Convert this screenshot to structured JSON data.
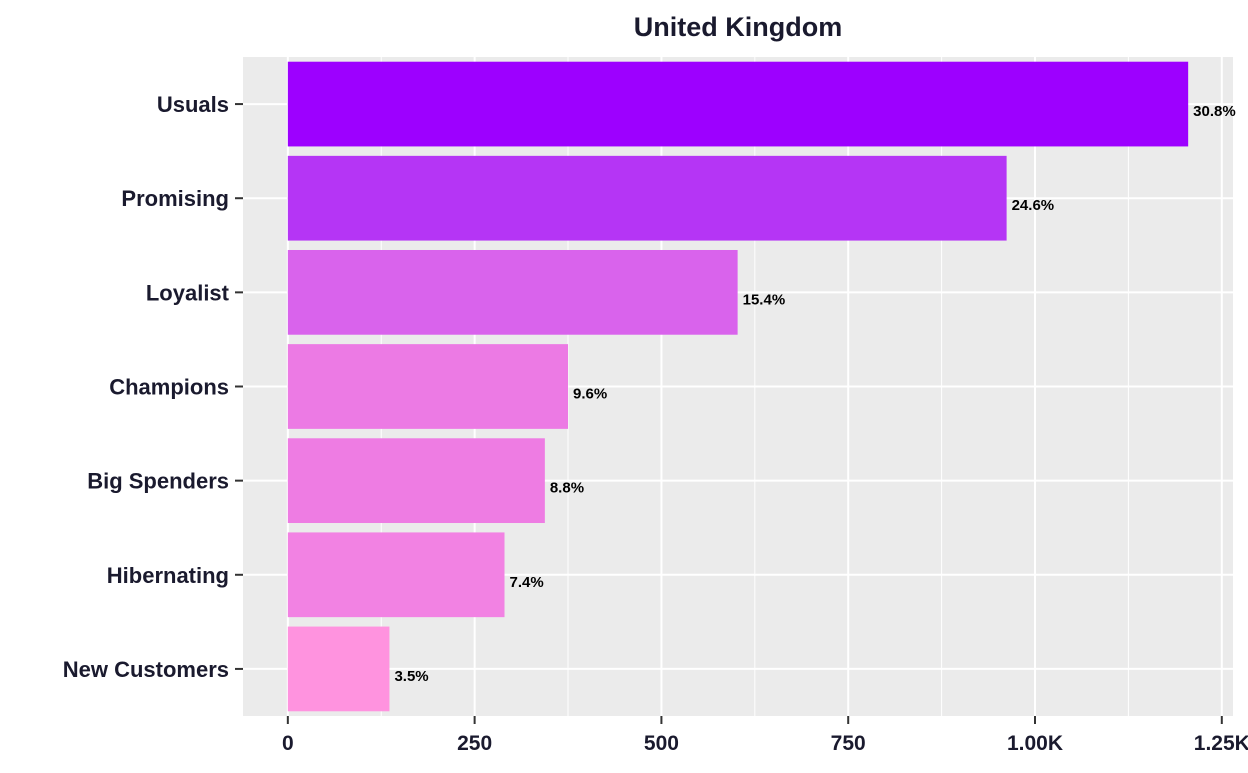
{
  "chart_data": {
    "type": "bar",
    "orientation": "horizontal",
    "title": "United Kingdom",
    "xlabel": "",
    "ylabel": "",
    "categories": [
      "Usuals",
      "Promising",
      "Loyalist",
      "Champions",
      "Big Spenders",
      "Hibernating",
      "New Customers"
    ],
    "values": [
      1205,
      962,
      602,
      375,
      344,
      290,
      136
    ],
    "labels": [
      "30.8%",
      "24.6%",
      "15.4%",
      "9.6%",
      "8.8%",
      "7.4%",
      "3.5%"
    ],
    "colors": [
      "#9d00ff",
      "#b535f5",
      "#d963ec",
      "#ec7ae4",
      "#ee7ce3",
      "#f282e3",
      "#ff93df"
    ],
    "xlim": [
      -60,
      1265
    ],
    "x_ticks": [
      0,
      250,
      500,
      750,
      1000,
      1250
    ],
    "x_tick_labels": [
      "0",
      "250",
      "500",
      "750",
      "1.00K",
      "1.25K"
    ],
    "grid": true,
    "panel_background": "#ebebeb",
    "grid_color": "#ffffff",
    "text_color": "#1a1a2e"
  }
}
